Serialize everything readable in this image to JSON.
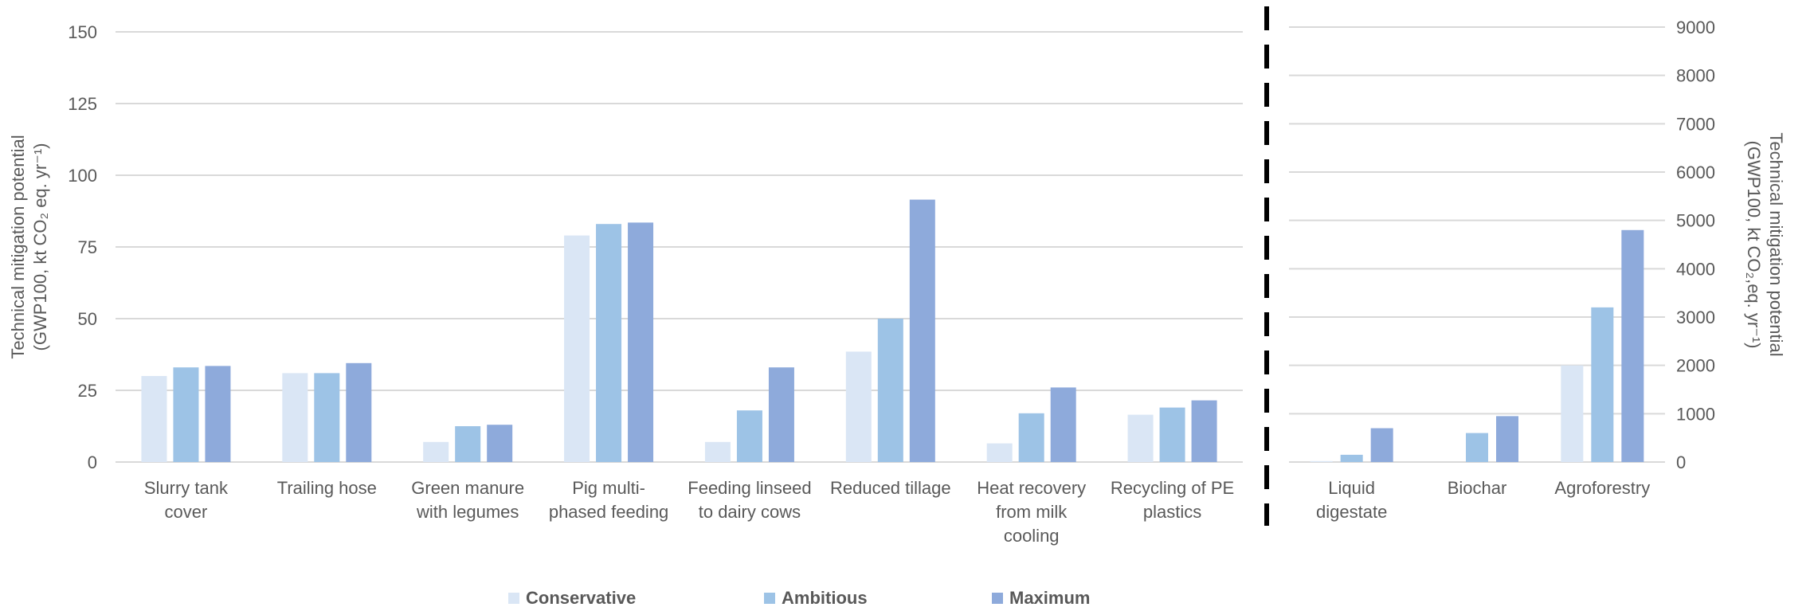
{
  "chart_data": [
    {
      "type": "bar",
      "categories": [
        [
          "Slurry tank",
          "cover"
        ],
        [
          "Trailing hose"
        ],
        [
          "Green manure",
          "with legumes"
        ],
        [
          "Pig multi-",
          "phased feeding"
        ],
        [
          "Feeding linseed",
          "to dairy cows"
        ],
        [
          "Reduced tillage"
        ],
        [
          "Heat recovery",
          "from milk",
          "cooling"
        ],
        [
          "Recycling of PE",
          "plastics"
        ]
      ],
      "series": [
        {
          "name": "Conservative",
          "values": [
            30,
            31,
            7,
            79,
            7,
            38.5,
            6.5,
            16.5
          ]
        },
        {
          "name": "Ambitious",
          "values": [
            33,
            31,
            12.5,
            83,
            18,
            50,
            17,
            19
          ]
        },
        {
          "name": "Maximum",
          "values": [
            33.5,
            34.5,
            13,
            83.5,
            33,
            91.5,
            26,
            21.5
          ]
        }
      ],
      "yticks": [
        "0",
        "25",
        "50",
        "75",
        "100",
        "125",
        "150"
      ],
      "ylim": [
        0,
        150
      ],
      "ylabel_lines": [
        "Technical mitigation potential",
        "(GWP100, kt CO₂ eq. yr⁻¹)"
      ]
    },
    {
      "type": "bar",
      "categories": [
        [
          "Liquid",
          "digestate"
        ],
        [
          "Biochar"
        ],
        [
          "Agroforestry"
        ]
      ],
      "series": [
        {
          "name": "Conservative",
          "values": [
            20,
            0,
            2000
          ]
        },
        {
          "name": "Ambitious",
          "values": [
            150,
            600,
            3200
          ]
        },
        {
          "name": "Maximum",
          "values": [
            700,
            950,
            4800
          ]
        }
      ],
      "yticks": [
        "0",
        "1000",
        "2000",
        "3000",
        "4000",
        "5000",
        "6000",
        "7000",
        "8000",
        "9000"
      ],
      "ylim": [
        0,
        9000
      ],
      "ylabel_lines": [
        "Technical mitigation potential",
        "(GWP100, kt CO₂,eq. yr⁻¹)"
      ]
    }
  ],
  "legend": [
    {
      "name": "Conservative",
      "color": "#dae6f5"
    },
    {
      "name": "Ambitious",
      "color": "#9dc3e6"
    },
    {
      "name": "Maximum",
      "color": "#8eaadb"
    }
  ],
  "colors": {
    "conservative": "#dae6f5",
    "ambitious": "#9dc3e6",
    "maximum": "#8eaadb",
    "grid": "#d9d9d9",
    "text": "#595959",
    "divider": "#000000"
  }
}
